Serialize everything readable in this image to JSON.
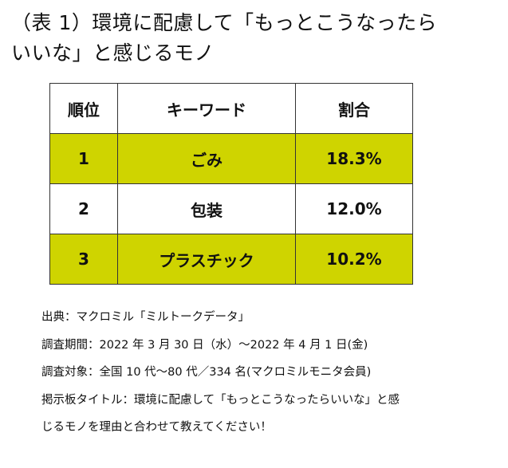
{
  "title": {
    "line1": "（表 1）環境に配慮して「もっとこうなったら",
    "line2": "いいな」と感じるモノ"
  },
  "table": {
    "headers": [
      "順位",
      "キーワード",
      "割合"
    ],
    "rows": [
      {
        "rank": "1",
        "keyword": "ごみ",
        "share": "18.3%",
        "highlight": true
      },
      {
        "rank": "2",
        "keyword": "包装",
        "share": "12.0%",
        "highlight": false
      },
      {
        "rank": "3",
        "keyword": "プラスチック",
        "share": "10.2%",
        "highlight": true
      }
    ],
    "highlight_color": "#cfd400"
  },
  "notes": {
    "source": "出典：マクロミル「ミルトークデータ」",
    "period": "調査期間：2022 年 3 月 30 日（水）～2022 年 4 月 1 日(金)",
    "target": "調査対象：全国 10 代～80 代／334 名(マクロミルモニタ会員)",
    "board_line1": "掲示板タイトル：環境に配慮して「もっとこうなったらいいな」と感",
    "board_line2": "じるモノを理由と合わせて教えてください！"
  }
}
